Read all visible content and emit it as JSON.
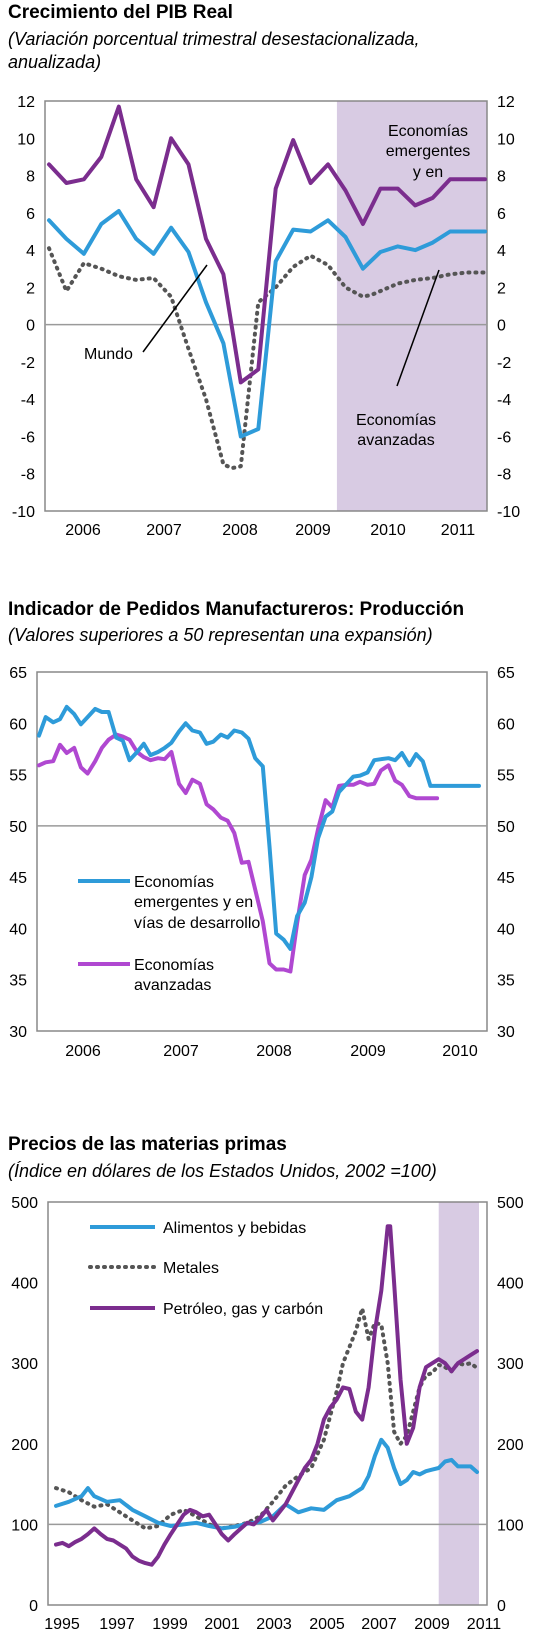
{
  "chart_data": [
    {
      "type": "line",
      "title": "Crecimiento del PIB Real",
      "subtitle_line1": "(Variación porcentual trimestral desestacionalizada,",
      "subtitle_line2": "anualizada)",
      "x_labels": [
        "2006",
        "2007",
        "2008",
        "2009",
        "2010",
        "2011"
      ],
      "ylim": [
        -10,
        12
      ],
      "yticks": [
        12,
        10,
        8,
        6,
        4,
        2,
        0,
        -2,
        -4,
        -6,
        -8,
        -10
      ],
      "zero_line": true,
      "shaded_from": 2010.0,
      "xlim": [
        2005.5,
        2011.75
      ],
      "series": [
        {
          "name": "Economías emergentes y en",
          "color": "#7b2d8e",
          "style": "solid",
          "x": [
            2005.5,
            2005.75,
            2006.0,
            2006.25,
            2006.5,
            2006.75,
            2007.0,
            2007.25,
            2007.5,
            2007.75,
            2008.0,
            2008.25,
            2008.5,
            2008.75,
            2009.0,
            2009.25,
            2009.5,
            2009.75,
            2010.0,
            2010.25,
            2010.5,
            2010.75,
            2011.0,
            2011.25,
            2011.5,
            2011.75
          ],
          "y": [
            8.6,
            7.6,
            7.8,
            9.0,
            11.7,
            7.8,
            6.3,
            10.0,
            8.6,
            4.6,
            2.7,
            -3.1,
            -2.4,
            7.3,
            9.9,
            7.6,
            8.6,
            7.2,
            5.4,
            7.3,
            7.3,
            6.4,
            6.8,
            7.8,
            7.8,
            7.8
          ]
        },
        {
          "name": "Mundo",
          "color": "#2e9bd9",
          "style": "solid",
          "x": [
            2005.5,
            2005.75,
            2006.0,
            2006.25,
            2006.5,
            2006.75,
            2007.0,
            2007.25,
            2007.5,
            2007.75,
            2008.0,
            2008.25,
            2008.5,
            2008.75,
            2009.0,
            2009.25,
            2009.5,
            2009.75,
            2010.0,
            2010.25,
            2010.5,
            2010.75,
            2011.0,
            2011.25,
            2011.5,
            2011.75
          ],
          "y": [
            5.6,
            4.6,
            3.8,
            5.4,
            6.1,
            4.6,
            3.8,
            5.2,
            3.9,
            1.2,
            -1.0,
            -6.0,
            -5.6,
            3.4,
            5.1,
            5.0,
            5.6,
            4.7,
            3.0,
            3.9,
            4.2,
            4.0,
            4.4,
            5.0,
            5.0,
            5.0
          ]
        },
        {
          "name": "Economías avanzadas",
          "color": "#555555",
          "style": "dotted",
          "x": [
            2005.5,
            2005.75,
            2006.0,
            2006.25,
            2006.5,
            2006.75,
            2007.0,
            2007.25,
            2007.5,
            2007.75,
            2008.0,
            2008.125,
            2008.25,
            2008.5,
            2008.75,
            2009.0,
            2009.25,
            2009.5,
            2009.75,
            2010.0,
            2010.125,
            2010.25,
            2010.5,
            2010.75,
            2011.0,
            2011.25,
            2011.5,
            2011.75
          ],
          "y": [
            4.1,
            1.8,
            3.3,
            3.0,
            2.6,
            2.4,
            2.5,
            1.5,
            -1.3,
            -4.0,
            -7.5,
            -7.7,
            -7.6,
            1.2,
            2.0,
            3.1,
            3.7,
            3.2,
            2.0,
            1.5,
            1.6,
            1.8,
            2.2,
            2.4,
            2.5,
            2.7,
            2.8,
            2.8
          ]
        }
      ],
      "labels": {
        "emergentes_line1": "Economías",
        "emergentes_line2": "emergentes",
        "emergentes_line3": "y en",
        "mundo": "Mundo",
        "avanzadas_line1": "Economías",
        "avanzadas_line2": "avanzadas"
      }
    },
    {
      "type": "line",
      "title": "Indicador de Pedidos Manufactureros: Producción",
      "subtitle": "(Valores superiores a 50 representan una expansión)",
      "x_labels": [
        "2006",
        "2007",
        "2008",
        "2009",
        "2010"
      ],
      "ylim": [
        30,
        65
      ],
      "yticks": [
        65,
        60,
        55,
        50,
        45,
        40,
        35,
        30
      ],
      "reference_line": 50,
      "xlim": [
        2005.5,
        2010.75
      ],
      "series": [
        {
          "name_line1": "Economías",
          "name_line2": "emergentes y en",
          "name_line3": "vías de desarrollo",
          "color": "#2e9bd9",
          "x": [
            2005.5,
            2005.58,
            2005.67,
            2005.75,
            2005.83,
            2005.92,
            2006.0,
            2006.08,
            2006.17,
            2006.25,
            2006.33,
            2006.42,
            2006.5,
            2006.58,
            2006.67,
            2006.75,
            2006.83,
            2006.92,
            2007.0,
            2007.08,
            2007.17,
            2007.25,
            2007.33,
            2007.42,
            2007.5,
            2007.58,
            2007.67,
            2007.75,
            2007.83,
            2007.92,
            2008.0,
            2008.08,
            2008.17,
            2008.25,
            2008.33,
            2008.42,
            2008.5,
            2008.58,
            2008.67,
            2008.75,
            2008.83,
            2008.92,
            2009.0,
            2009.08,
            2009.17,
            2009.25,
            2009.33,
            2009.42,
            2009.5,
            2009.58,
            2009.67,
            2009.75,
            2009.83,
            2009.92,
            2010.0,
            2010.08,
            2010.17,
            2010.25,
            2010.33,
            2010.42,
            2010.5,
            2010.58,
            2010.67,
            2010.75
          ],
          "y": [
            58.8,
            60.6,
            60.1,
            60.4,
            61.6,
            60.9,
            59.9,
            60.6,
            61.4,
            61.1,
            61.1,
            58.6,
            58.3,
            56.4,
            57.2,
            58.0,
            56.9,
            57.2,
            57.6,
            58.1,
            59.2,
            60.0,
            59.3,
            59.1,
            58.0,
            58.2,
            58.9,
            58.6,
            59.3,
            59.1,
            58.5,
            56.6,
            55.8,
            48.0,
            39.5,
            38.9,
            38.0,
            41.2,
            42.5,
            45.0,
            48.8,
            50.9,
            51.4,
            53.3,
            54.1,
            54.8,
            54.9,
            55.2,
            56.4,
            56.5,
            56.6,
            56.4,
            57.1,
            55.9,
            57.0,
            56.3,
            53.9,
            53.9,
            53.9,
            53.9,
            53.9,
            53.9,
            53.9,
            53.9
          ]
        },
        {
          "name_line1": "Economías",
          "name_line2": "avanzadas",
          "color": "#b048d1",
          "x": [
            2005.5,
            2005.58,
            2005.67,
            2005.75,
            2005.83,
            2005.92,
            2006.0,
            2006.08,
            2006.17,
            2006.25,
            2006.33,
            2006.42,
            2006.5,
            2006.58,
            2006.67,
            2006.75,
            2006.83,
            2006.92,
            2007.0,
            2007.08,
            2007.17,
            2007.25,
            2007.33,
            2007.42,
            2007.5,
            2007.58,
            2007.67,
            2007.75,
            2007.83,
            2007.92,
            2008.0,
            2008.08,
            2008.17,
            2008.25,
            2008.33,
            2008.42,
            2008.5,
            2008.58,
            2008.67,
            2008.75,
            2008.83,
            2008.92,
            2009.0,
            2009.08,
            2009.17,
            2009.25,
            2009.33,
            2009.42,
            2009.5,
            2009.58,
            2009.67,
            2009.75,
            2009.83,
            2009.92,
            2010.0,
            2010.08,
            2010.17,
            2010.25
          ],
          "y": [
            55.9,
            56.2,
            56.3,
            57.9,
            57.1,
            57.6,
            55.7,
            55.1,
            56.3,
            57.6,
            58.4,
            58.9,
            58.7,
            58.4,
            57.2,
            56.7,
            56.4,
            56.6,
            56.5,
            57.2,
            54.1,
            53.2,
            54.5,
            54.1,
            52.1,
            51.6,
            50.8,
            50.5,
            49.3,
            46.4,
            46.5,
            43.8,
            40.7,
            36.6,
            36.0,
            36.0,
            35.8,
            40.5,
            45.2,
            46.7,
            49.7,
            52.5,
            51.8,
            53.9,
            54.0,
            54.0,
            54.3,
            54.0,
            54.1,
            55.4,
            55.9,
            54.4,
            54.0,
            52.9,
            52.7,
            52.7,
            52.7,
            52.7
          ]
        }
      ]
    },
    {
      "type": "line",
      "title": "Precios de las materias primas",
      "subtitle": "(Índice en dólares de los Estados Unidos, 2002 =100)",
      "x_labels": [
        "1995",
        "1997",
        "1999",
        "2001",
        "2003",
        "2005",
        "2007",
        "2009",
        "2011"
      ],
      "ylim": [
        0,
        500
      ],
      "yticks": [
        500,
        400,
        300,
        200,
        100,
        0
      ],
      "reference_line": 100,
      "shaded_from": 2010.0,
      "xlim": [
        1995.0,
        2011.5
      ],
      "series": [
        {
          "name": "Alimentos y bebidas",
          "color": "#2e9bd9",
          "style": "solid",
          "x": [
            1995.0,
            1995.5,
            1996.0,
            1996.25,
            1996.5,
            1997.0,
            1997.5,
            1998.0,
            1998.5,
            1999.0,
            1999.5,
            2000.0,
            2000.5,
            2001.0,
            2001.5,
            2002.0,
            2002.5,
            2003.0,
            2003.5,
            2004.0,
            2004.5,
            2005.0,
            2005.5,
            2006.0,
            2006.5,
            2007.0,
            2007.25,
            2007.5,
            2007.75,
            2008.0,
            2008.25,
            2008.5,
            2008.75,
            2009.0,
            2009.25,
            2009.5,
            2009.75,
            2010.0,
            2010.25,
            2010.5,
            2010.75,
            2011.0,
            2011.25,
            2011.5
          ],
          "y": [
            123,
            128,
            135,
            145,
            135,
            128,
            130,
            118,
            110,
            102,
            98,
            100,
            102,
            98,
            95,
            97,
            101,
            103,
            110,
            125,
            115,
            120,
            118,
            130,
            135,
            145,
            160,
            185,
            205,
            195,
            170,
            150,
            155,
            165,
            162,
            166,
            168,
            170,
            178,
            180,
            172,
            172,
            172,
            165
          ]
        },
        {
          "name": "Metales",
          "color": "#555555",
          "style": "dotted",
          "x": [
            1995.0,
            1995.5,
            1996.0,
            1996.5,
            1997.0,
            1997.5,
            1998.0,
            1998.5,
            1999.0,
            1999.5,
            2000.0,
            2000.5,
            2001.0,
            2001.5,
            2002.0,
            2002.5,
            2003.0,
            2003.5,
            2004.0,
            2004.5,
            2005.0,
            2005.5,
            2006.0,
            2006.25,
            2006.5,
            2006.75,
            2007.0,
            2007.25,
            2007.5,
            2007.75,
            2008.0,
            2008.25,
            2008.5,
            2008.75,
            2009.0,
            2009.25,
            2009.5,
            2009.75,
            2010.0,
            2010.25,
            2010.5,
            2010.75,
            2011.0,
            2011.25,
            2011.5
          ],
          "y": [
            145,
            140,
            130,
            122,
            125,
            115,
            105,
            95,
            98,
            112,
            118,
            110,
            100,
            95,
            98,
            102,
            110,
            128,
            148,
            160,
            170,
            205,
            265,
            300,
            320,
            340,
            368,
            330,
            350,
            348,
            300,
            215,
            200,
            210,
            240,
            270,
            285,
            288,
            298,
            295,
            290,
            300,
            298,
            300,
            294
          ]
        },
        {
          "name": "Petróleo, gas y carbón",
          "color": "#7b2d8e",
          "style": "solid",
          "x": [
            1995.0,
            1995.25,
            1995.5,
            1995.75,
            1996.0,
            1996.25,
            1996.5,
            1996.75,
            1997.0,
            1997.25,
            1997.5,
            1997.75,
            1998.0,
            1998.25,
            1998.5,
            1998.75,
            1999.0,
            1999.25,
            1999.5,
            1999.75,
            2000.0,
            2000.25,
            2000.5,
            2000.75,
            2001.0,
            2001.25,
            2001.5,
            2001.75,
            2002.0,
            2002.25,
            2002.5,
            2002.75,
            2003.0,
            2003.25,
            2003.5,
            2003.75,
            2004.0,
            2004.25,
            2004.5,
            2004.75,
            2005.0,
            2005.25,
            2005.5,
            2005.75,
            2006.0,
            2006.25,
            2006.5,
            2006.75,
            2007.0,
            2007.25,
            2007.5,
            2007.75,
            2008.0,
            2008.1,
            2008.25,
            2008.5,
            2008.75,
            2009.0,
            2009.25,
            2009.5,
            2009.75,
            2010.0,
            2010.25,
            2010.5,
            2010.75,
            2011.0,
            2011.25,
            2011.5
          ],
          "y": [
            75,
            77,
            73,
            78,
            82,
            88,
            95,
            88,
            82,
            80,
            75,
            70,
            60,
            55,
            52,
            50,
            60,
            75,
            88,
            100,
            112,
            118,
            115,
            110,
            112,
            100,
            88,
            80,
            88,
            95,
            102,
            100,
            108,
            118,
            105,
            115,
            125,
            140,
            155,
            170,
            180,
            200,
            230,
            245,
            255,
            270,
            268,
            240,
            230,
            270,
            340,
            390,
            470,
            470,
            400,
            280,
            200,
            220,
            270,
            295,
            300,
            305,
            300,
            290,
            300,
            305,
            310,
            315
          ]
        }
      ]
    }
  ]
}
